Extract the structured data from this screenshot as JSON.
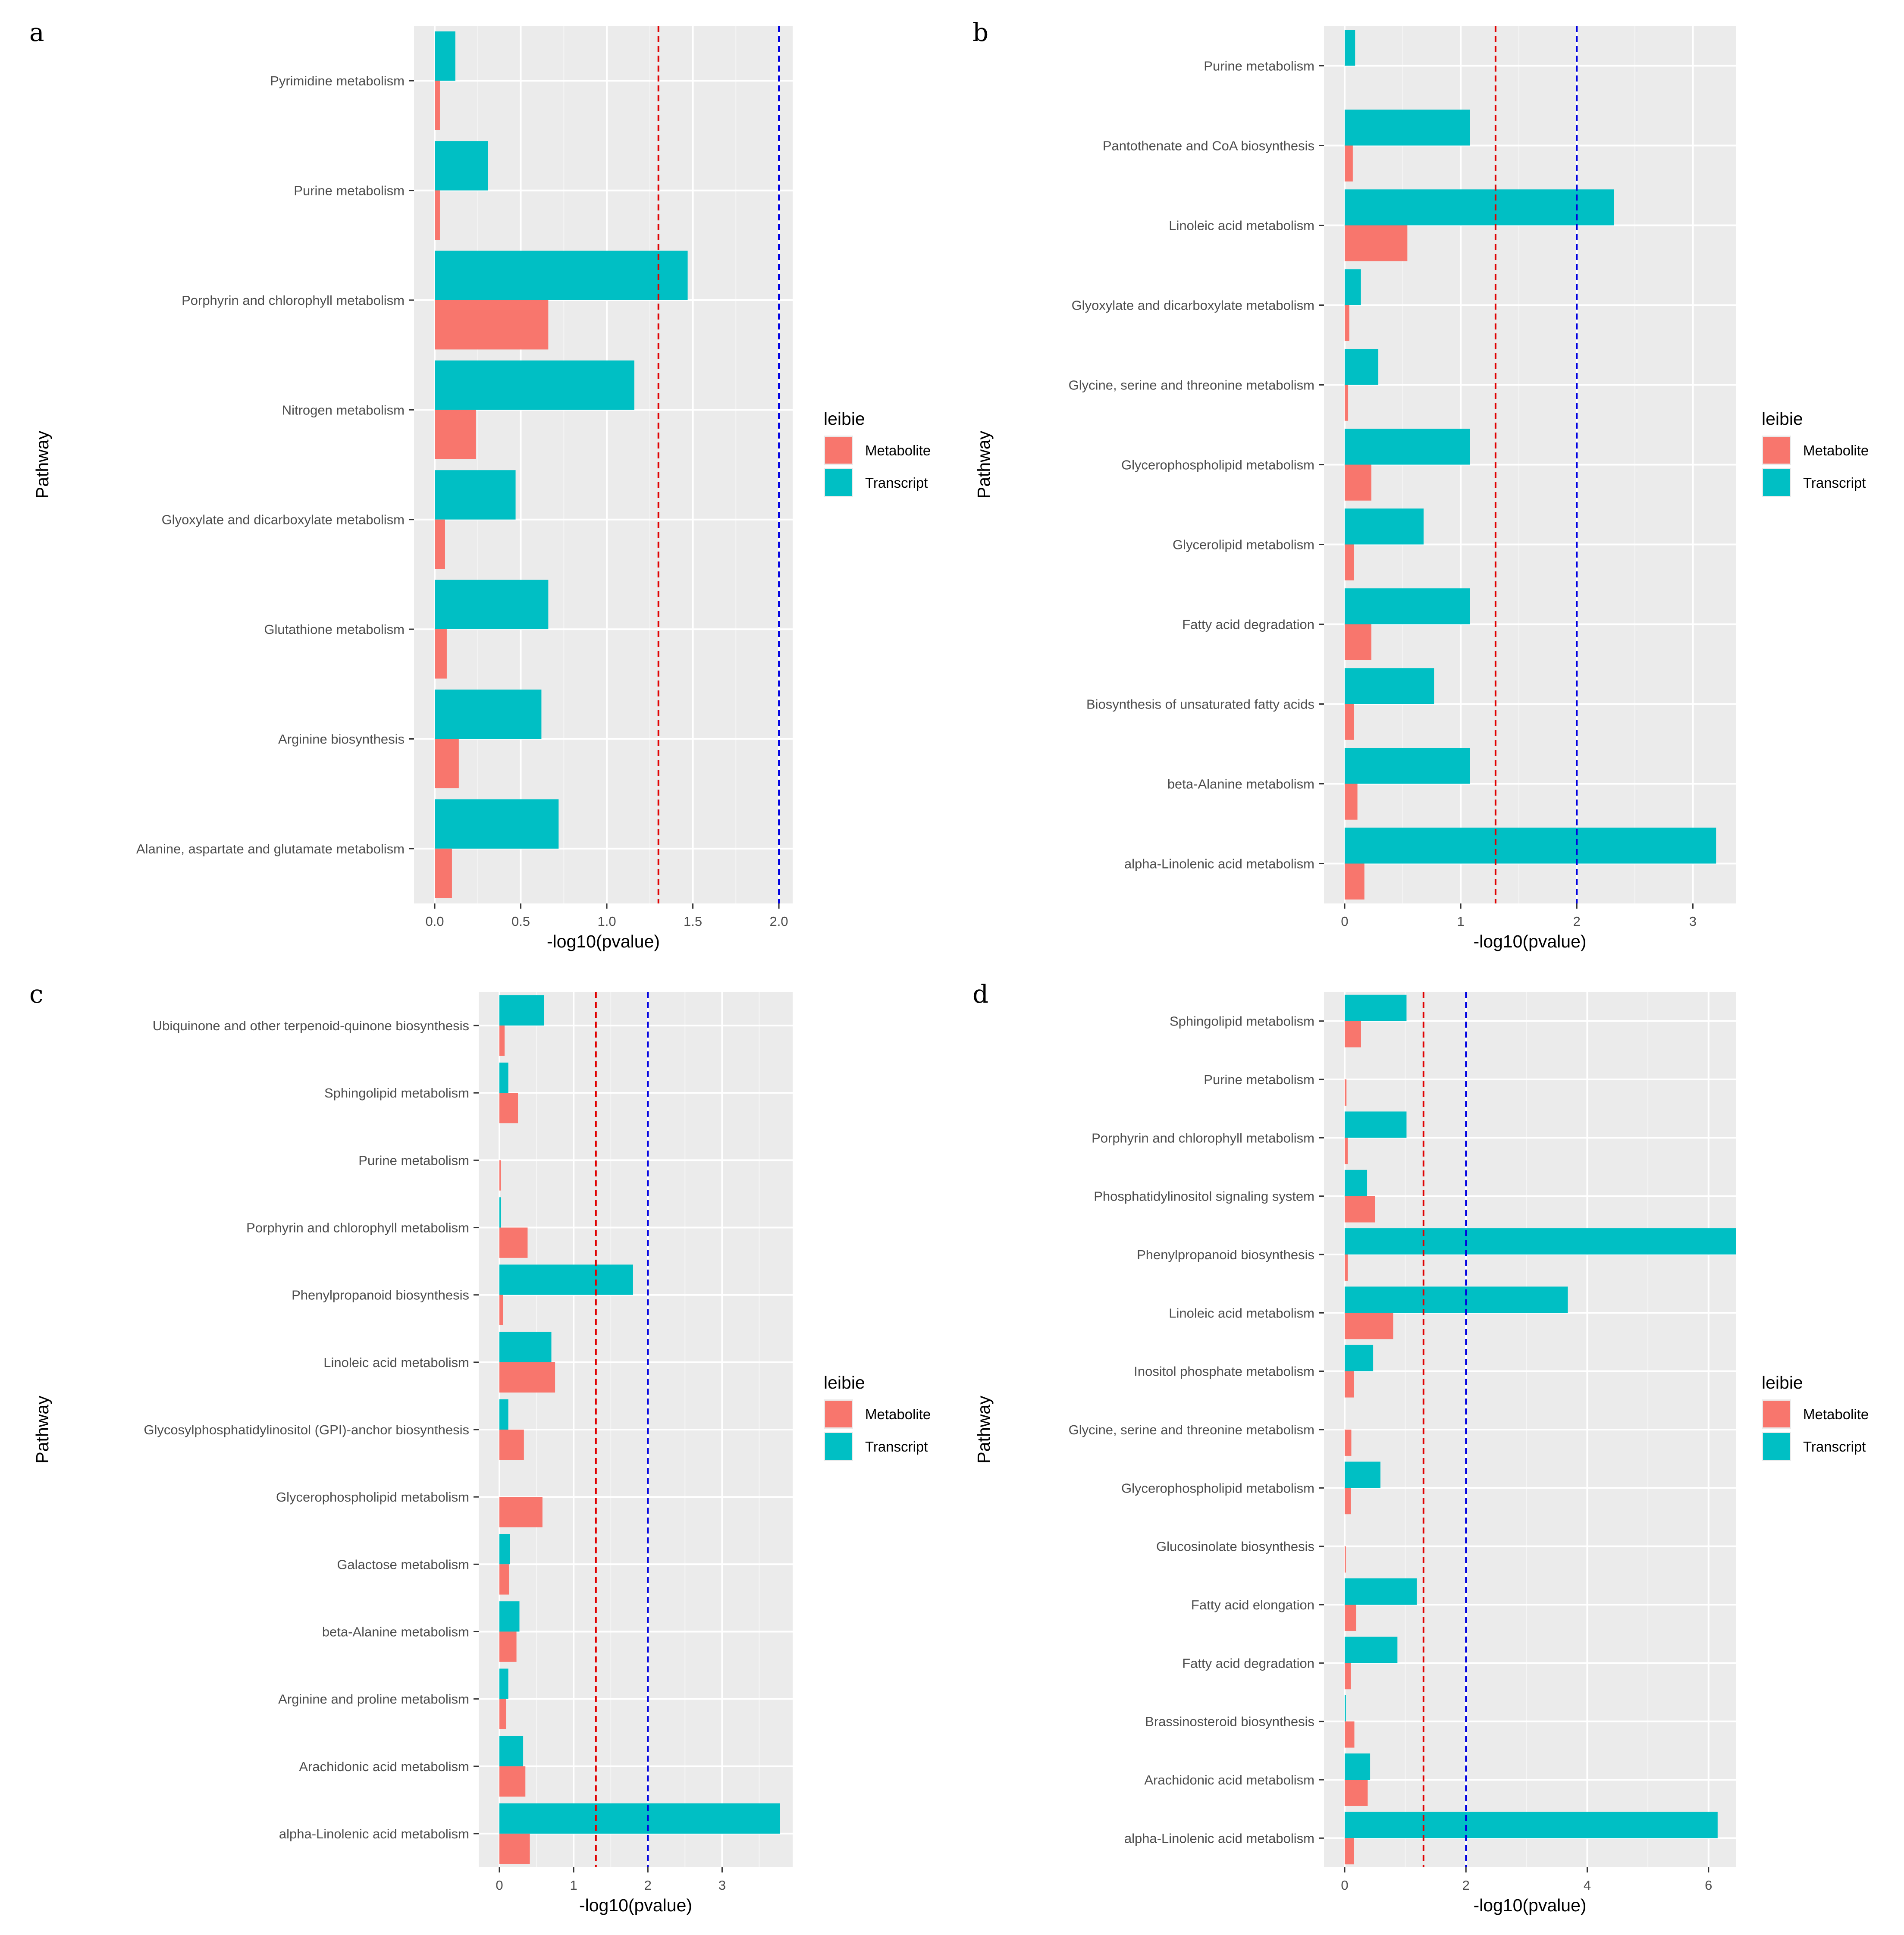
{
  "figure": {
    "legend": {
      "title": "leibie",
      "items": [
        {
          "label": "Metabolite",
          "color": "#F8766D"
        },
        {
          "label": "Transcript",
          "color": "#00BFC4"
        }
      ]
    },
    "colors": {
      "panel_bg": "#EBEBEB",
      "grid_major": "#FFFFFF",
      "threshold_red": "#E00000",
      "threshold_blue": "#0000E0"
    }
  },
  "chart_data": [
    {
      "panel": "a",
      "type": "bar",
      "orientation": "horizontal",
      "xlabel": "-log10(pvalue)",
      "ylabel": "Pathway",
      "xlim": [
        0,
        2.08
      ],
      "xticks": [
        0.0,
        0.5,
        1.0,
        1.5,
        2.0
      ],
      "xtick_labels": [
        "0.0",
        "0.5",
        "1.0",
        "1.5",
        "2.0"
      ],
      "thresholds": [
        1.3,
        2.0
      ],
      "categories": [
        "Pyrimidine metabolism",
        "Purine metabolism",
        "Porphyrin and chlorophyll metabolism",
        "Nitrogen metabolism",
        "Glyoxylate and dicarboxylate metabolism",
        "Glutathione metabolism",
        "Arginine biosynthesis",
        "Alanine, aspartate and glutamate metabolism"
      ],
      "series": [
        {
          "name": "Metabolite",
          "values": [
            0.03,
            0.03,
            0.66,
            0.24,
            0.06,
            0.07,
            0.14,
            0.1
          ]
        },
        {
          "name": "Transcript",
          "values": [
            0.12,
            0.31,
            1.47,
            1.16,
            0.47,
            0.66,
            0.62,
            0.72
          ]
        }
      ]
    },
    {
      "panel": "b",
      "type": "bar",
      "orientation": "horizontal",
      "xlabel": "-log10(pvalue)",
      "ylabel": "Pathway",
      "xlim": [
        0,
        3.37
      ],
      "xticks": [
        0,
        1,
        2,
        3
      ],
      "xtick_labels": [
        "0",
        "1",
        "2",
        "3"
      ],
      "thresholds": [
        1.3,
        2.0
      ],
      "categories": [
        "Purine metabolism",
        "Pantothenate and CoA biosynthesis",
        "Linoleic acid metabolism",
        "Glyoxylate and dicarboxylate metabolism",
        "Glycine, serine and threonine metabolism",
        "Glycerophospholipid metabolism",
        "Glycerolipid metabolism",
        "Fatty acid degradation",
        "Biosynthesis of unsaturated fatty acids",
        "beta-Alanine metabolism",
        "alpha-Linolenic acid metabolism"
      ],
      "series": [
        {
          "name": "Metabolite",
          "values": [
            0,
            0.07,
            0.54,
            0.04,
            0.03,
            0.23,
            0.08,
            0.23,
            0.08,
            0.11,
            0.17
          ]
        },
        {
          "name": "Transcript",
          "values": [
            0.09,
            1.08,
            2.32,
            0.14,
            0.29,
            1.08,
            0.68,
            1.08,
            0.77,
            1.08,
            3.2
          ]
        }
      ]
    },
    {
      "panel": "c",
      "type": "bar",
      "orientation": "horizontal",
      "xlabel": "-log10(pvalue)",
      "ylabel": "Pathway",
      "xlim": [
        0,
        3.95
      ],
      "xticks": [
        0,
        1,
        2,
        3
      ],
      "xtick_labels": [
        "0",
        "1",
        "2",
        "3"
      ],
      "thresholds": [
        1.3,
        2.0
      ],
      "categories": [
        "Ubiquinone and other terpenoid-quinone biosynthesis",
        "Sphingolipid metabolism",
        "Purine metabolism",
        "Porphyrin and chlorophyll metabolism",
        "Phenylpropanoid biosynthesis",
        "Linoleic acid metabolism",
        "Glycosylphosphatidylinositol (GPI)-anchor biosynthesis",
        "Glycerophospholipid metabolism",
        "Galactose metabolism",
        "beta-Alanine metabolism",
        "Arginine and proline metabolism",
        "Arachidonic acid metabolism",
        "alpha-Linolenic acid metabolism"
      ],
      "series": [
        {
          "name": "Metabolite",
          "values": [
            0.07,
            0.25,
            0.02,
            0.38,
            0.05,
            0.75,
            0.33,
            0.58,
            0.13,
            0.23,
            0.09,
            0.35,
            0.41
          ]
        },
        {
          "name": "Transcript",
          "values": [
            0.6,
            0.12,
            0,
            0.02,
            1.8,
            0.7,
            0.12,
            0,
            0.14,
            0.27,
            0.12,
            0.32,
            3.78
          ]
        }
      ]
    },
    {
      "panel": "d",
      "type": "bar",
      "orientation": "horizontal",
      "xlabel": "-log10(pvalue)",
      "ylabel": "Pathway",
      "xlim": [
        0,
        6.45
      ],
      "xticks": [
        0,
        2,
        4,
        6
      ],
      "xtick_labels": [
        "0",
        "2",
        "4",
        "6"
      ],
      "thresholds": [
        1.3,
        2.0
      ],
      "categories": [
        "Sphingolipid metabolism",
        "Purine metabolism",
        "Porphyrin and chlorophyll metabolism",
        "Phosphatidylinositol signaling system",
        "Phenylpropanoid biosynthesis",
        "Linoleic acid metabolism",
        "Inositol phosphate metabolism",
        "Glycine, serine and threonine metabolism",
        "Glycerophospholipid metabolism",
        "Glucosinolate biosynthesis",
        "Fatty acid elongation",
        "Fatty acid degradation",
        "Brassinosteroid biosynthesis",
        "Arachidonic acid metabolism",
        "alpha-Linolenic acid metabolism"
      ],
      "series": [
        {
          "name": "Metabolite",
          "values": [
            0.27,
            0.03,
            0.05,
            0.5,
            0.05,
            0.8,
            0.15,
            0.11,
            0.1,
            0.02,
            0.19,
            0.1,
            0.16,
            0.38,
            0.15
          ]
        },
        {
          "name": "Transcript",
          "values": [
            1.02,
            0,
            1.02,
            0.37,
            6.45,
            3.68,
            0.47,
            0,
            0.59,
            0,
            1.19,
            0.87,
            0.02,
            0.42,
            6.15
          ]
        }
      ]
    }
  ]
}
